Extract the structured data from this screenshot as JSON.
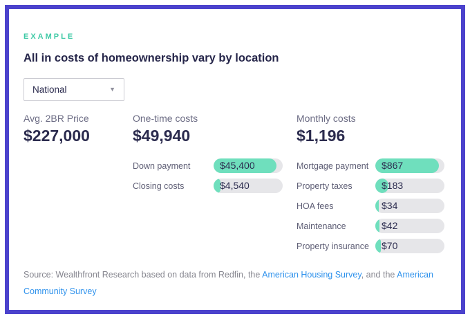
{
  "colors": {
    "border": "#4b42cc",
    "accent_teal": "#6fdfbd",
    "eyebrow_teal": "#3dc9a5",
    "track_gray": "#e6e6e9",
    "navy": "#2b2b4e",
    "label_gray": "#6c6c84",
    "source_gray": "#86868f",
    "link_blue": "#2f92ec"
  },
  "eyebrow": "EXAMPLE",
  "title": "All in costs of homeownership vary by location",
  "region_select": {
    "value": "National"
  },
  "summary": {
    "price": {
      "label": "Avg. 2BR Price",
      "value": "$227,000"
    },
    "onetime": {
      "label": "One-time costs",
      "value": "$49,940"
    },
    "monthly": {
      "label": "Monthly costs",
      "value": "$1,196"
    }
  },
  "chart_data": {
    "type": "bar",
    "title": "All in costs of homeownership vary by location",
    "region": "National",
    "avg_2br_price": 227000,
    "groups": [
      {
        "name": "One-time costs",
        "total": 49940,
        "total_display": "$49,940",
        "rows": [
          {
            "label": "Down payment",
            "value": 45400,
            "display": "$45,400",
            "fill_pct": 91
          },
          {
            "label": "Closing costs",
            "value": 4540,
            "display": "$4,540",
            "fill_pct": 10
          }
        ]
      },
      {
        "name": "Monthly costs",
        "total": 1196,
        "total_display": "$1,196",
        "rows": [
          {
            "label": "Mortgage payment",
            "value": 867,
            "display": "$867",
            "fill_pct": 92
          },
          {
            "label": "Property taxes",
            "value": 183,
            "display": "$183",
            "fill_pct": 19
          },
          {
            "label": "HOA fees",
            "value": 34,
            "display": "$34",
            "fill_pct": 5
          },
          {
            "label": "Maintenance",
            "value": 42,
            "display": "$42",
            "fill_pct": 6
          },
          {
            "label": "Property insurance",
            "value": 70,
            "display": "$70",
            "fill_pct": 8
          }
        ]
      }
    ]
  },
  "source": {
    "parts": [
      {
        "text": "Source: Wealthfront Research based on data from Redfin, the ",
        "link": false
      },
      {
        "text": "American Housing Survey",
        "link": true
      },
      {
        "text": ", and the ",
        "link": false
      },
      {
        "text": "American Community Survey",
        "link": true
      }
    ]
  }
}
